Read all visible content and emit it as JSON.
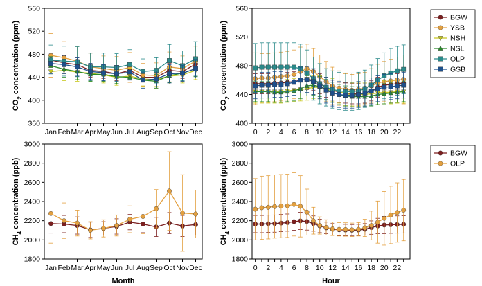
{
  "chart_data": [
    {
      "id": "co2_month",
      "type": "line",
      "ylabel_main": "CO",
      "ylabel_sub": "2",
      "ylabel_rest": " concentration (ppm)",
      "xlabel": "",
      "ylim": [
        360,
        560
      ],
      "yticks": [
        "360",
        "400",
        "440",
        "480",
        "520",
        "560"
      ],
      "categories": [
        "Jan",
        "Feb",
        "Mar",
        "Apr",
        "May",
        "Jun",
        "Jul",
        "Aug",
        "Sep",
        "Oct",
        "Nov",
        "Dec"
      ],
      "series": [
        {
          "name": "BGW",
          "color": "#7b1f1f",
          "marker": "circle",
          "values": [
            470,
            465,
            462,
            452,
            450,
            446,
            452,
            440,
            440,
            452,
            450,
            463
          ],
          "err": [
            12,
            12,
            12,
            12,
            12,
            12,
            12,
            12,
            12,
            12,
            12,
            12
          ]
        },
        {
          "name": "YSB",
          "color": "#e3a040",
          "marker": "circle",
          "values": [
            478,
            474,
            468,
            458,
            455,
            452,
            457,
            444,
            443,
            458,
            455,
            468
          ],
          "err": [
            38,
            28,
            26,
            24,
            22,
            24,
            26,
            20,
            22,
            26,
            22,
            26
          ]
        },
        {
          "name": "NSH",
          "color": "#c8c820",
          "marker": "triangle-down",
          "values": [
            450,
            452,
            449,
            447,
            444,
            440,
            442,
            437,
            436,
            442,
            444,
            452
          ],
          "err": [
            22,
            18,
            16,
            14,
            14,
            14,
            14,
            12,
            12,
            14,
            14,
            16
          ]
        },
        {
          "name": "NSL",
          "color": "#2b8a2b",
          "marker": "triangle",
          "values": [
            460,
            454,
            450,
            445,
            445,
            441,
            440,
            435,
            433,
            443,
            447,
            455
          ],
          "err": [
            16,
            14,
            14,
            12,
            12,
            12,
            12,
            12,
            12,
            12,
            12,
            14
          ]
        },
        {
          "name": "OLP",
          "color": "#2a8a8a",
          "marker": "square",
          "values": [
            470,
            468,
            467,
            458,
            458,
            457,
            462,
            450,
            452,
            469,
            460,
            472
          ],
          "err": [
            26,
            26,
            26,
            24,
            24,
            24,
            26,
            22,
            22,
            28,
            26,
            30
          ]
        },
        {
          "name": "GSB",
          "color": "#1e4f8a",
          "marker": "square",
          "values": [
            464,
            462,
            458,
            450,
            448,
            446,
            449,
            435,
            437,
            446,
            447,
            455
          ],
          "err": [
            18,
            16,
            16,
            14,
            14,
            14,
            14,
            14,
            14,
            16,
            14,
            16
          ]
        }
      ]
    },
    {
      "id": "co2_hour",
      "type": "line",
      "ylabel_main": "CO",
      "ylabel_sub": "2",
      "ylabel_rest": " concentration (ppm)",
      "xlabel": "",
      "ylim": [
        400,
        560
      ],
      "yticks": [
        "400",
        "440",
        "480",
        "520",
        "560"
      ],
      "categories": [
        "0",
        "1",
        "2",
        "3",
        "4",
        "5",
        "6",
        "7",
        "8",
        "9",
        "10",
        "11",
        "12",
        "13",
        "14",
        "15",
        "16",
        "17",
        "18",
        "19",
        "20",
        "21",
        "22",
        "23"
      ],
      "tick_labels": [
        "0",
        "",
        "2",
        "",
        "4",
        "",
        "6",
        "",
        "8",
        "",
        "10",
        "",
        "12",
        "",
        "14",
        "",
        "16",
        "",
        "18",
        "",
        "20",
        "",
        "22",
        ""
      ],
      "legend": [
        "BGW",
        "YSB",
        "NSH",
        "NSL",
        "OLP",
        "GSB"
      ],
      "series": [
        {
          "name": "BGW",
          "color": "#7b1f1f",
          "marker": "circle",
          "values": [
            455,
            455,
            455,
            456,
            456,
            457,
            458,
            460,
            461,
            460,
            455,
            450,
            446,
            443,
            442,
            441,
            441,
            442,
            445,
            450,
            453,
            454,
            455,
            456
          ],
          "err": [
            14,
            14,
            14,
            14,
            14,
            14,
            14,
            14,
            14,
            14,
            14,
            14,
            14,
            14,
            14,
            14,
            14,
            14,
            14,
            14,
            14,
            14,
            14,
            14
          ]
        },
        {
          "name": "YSB",
          "color": "#e3a040",
          "marker": "circle",
          "values": [
            462,
            463,
            463,
            464,
            465,
            466,
            468,
            472,
            476,
            472,
            465,
            458,
            452,
            449,
            447,
            446,
            447,
            449,
            452,
            456,
            458,
            459,
            460,
            461
          ],
          "err": [
            36,
            34,
            34,
            34,
            34,
            34,
            34,
            34,
            34,
            32,
            30,
            28,
            26,
            24,
            22,
            22,
            22,
            22,
            24,
            26,
            28,
            30,
            32,
            34
          ]
        },
        {
          "name": "NSH",
          "color": "#c8c820",
          "marker": "triangle-down",
          "values": [
            444,
            444,
            444,
            444,
            444,
            445,
            446,
            447,
            448,
            450,
            450,
            448,
            446,
            444,
            441,
            440,
            440,
            440,
            441,
            442,
            443,
            443,
            444,
            444
          ],
          "err": [
            16,
            16,
            16,
            16,
            16,
            16,
            16,
            16,
            16,
            16,
            16,
            16,
            16,
            16,
            16,
            16,
            16,
            16,
            16,
            16,
            16,
            16,
            16,
            16
          ]
        },
        {
          "name": "NSL",
          "color": "#2b8a2b",
          "marker": "triangle",
          "values": [
            444,
            444,
            444,
            443,
            443,
            444,
            445,
            448,
            452,
            453,
            451,
            447,
            443,
            440,
            438,
            437,
            437,
            437,
            438,
            440,
            441,
            442,
            443,
            444
          ],
          "err": [
            14,
            14,
            14,
            14,
            14,
            14,
            14,
            14,
            14,
            14,
            14,
            14,
            14,
            14,
            14,
            14,
            14,
            14,
            14,
            14,
            14,
            14,
            14,
            14
          ]
        },
        {
          "name": "OLP",
          "color": "#2a8a8a",
          "marker": "square",
          "values": [
            477,
            478,
            478,
            478,
            478,
            478,
            478,
            476,
            470,
            462,
            455,
            450,
            447,
            445,
            444,
            444,
            445,
            448,
            453,
            460,
            466,
            470,
            473,
            475
          ],
          "err": [
            34,
            34,
            34,
            34,
            34,
            34,
            34,
            34,
            32,
            30,
            28,
            26,
            26,
            26,
            26,
            26,
            26,
            26,
            28,
            30,
            32,
            34,
            34,
            34
          ]
        },
        {
          "name": "GSB",
          "color": "#1e4f8a",
          "marker": "square",
          "values": [
            452,
            453,
            453,
            454,
            454,
            455,
            457,
            460,
            461,
            458,
            452,
            446,
            442,
            440,
            439,
            439,
            440,
            442,
            445,
            448,
            450,
            451,
            452,
            453
          ],
          "err": [
            18,
            18,
            18,
            18,
            18,
            18,
            18,
            18,
            18,
            18,
            18,
            18,
            18,
            18,
            18,
            18,
            18,
            18,
            18,
            18,
            18,
            18,
            18,
            18
          ]
        }
      ]
    },
    {
      "id": "ch4_month",
      "type": "line",
      "ylabel_main": "CH",
      "ylabel_sub": "4",
      "ylabel_rest": " concentration (ppb)",
      "xlabel": "Month",
      "ylim": [
        1800,
        3000
      ],
      "yticks": [
        "1800",
        "2000",
        "2200",
        "2400",
        "2600",
        "2800",
        "3000"
      ],
      "categories": [
        "Jan",
        "Feb",
        "Mar",
        "Apr",
        "May",
        "Jun",
        "Jul",
        "Aug",
        "Sep",
        "Oct",
        "Nov",
        "Dec"
      ],
      "series": [
        {
          "name": "BGW",
          "color": "#7b1f1f",
          "marker": "circle",
          "values": [
            2170,
            2165,
            2150,
            2105,
            2120,
            2140,
            2185,
            2165,
            2135,
            2175,
            2145,
            2160
          ],
          "err": [
            100,
            90,
            90,
            80,
            70,
            80,
            80,
            90,
            100,
            110,
            110,
            110
          ]
        },
        {
          "name": "OLP",
          "color": "#e3a040",
          "marker": "circle",
          "values": [
            2275,
            2200,
            2175,
            2100,
            2120,
            2150,
            2215,
            2245,
            2325,
            2510,
            2280,
            2270
          ],
          "err": [
            310,
            185,
            135,
            90,
            90,
            110,
            140,
            180,
            200,
            410,
            400,
            250
          ]
        }
      ]
    },
    {
      "id": "ch4_hour",
      "type": "line",
      "ylabel_main": "CH",
      "ylabel_sub": "4",
      "ylabel_rest": " concentration (ppb)",
      "xlabel": "Hour",
      "ylim": [
        1800,
        3000
      ],
      "yticks": [
        "1800",
        "2000",
        "2200",
        "2400",
        "2600",
        "2800",
        "3000"
      ],
      "categories": [
        "0",
        "1",
        "2",
        "3",
        "4",
        "5",
        "6",
        "7",
        "8",
        "9",
        "10",
        "11",
        "12",
        "13",
        "14",
        "15",
        "16",
        "17",
        "18",
        "19",
        "20",
        "21",
        "22",
        "23"
      ],
      "tick_labels": [
        "0",
        "",
        "2",
        "",
        "4",
        "",
        "6",
        "",
        "8",
        "",
        "10",
        "",
        "12",
        "",
        "14",
        "",
        "16",
        "",
        "18",
        "",
        "20",
        "",
        "22",
        ""
      ],
      "legend": [
        "BGW",
        "OLP"
      ],
      "series": [
        {
          "name": "BGW",
          "color": "#7b1f1f",
          "marker": "circle",
          "values": [
            2165,
            2165,
            2168,
            2170,
            2175,
            2180,
            2190,
            2198,
            2192,
            2170,
            2145,
            2125,
            2110,
            2105,
            2102,
            2100,
            2102,
            2110,
            2128,
            2145,
            2155,
            2158,
            2160,
            2162
          ],
          "err": [
            90,
            90,
            90,
            90,
            90,
            90,
            90,
            90,
            90,
            80,
            70,
            60,
            60,
            60,
            60,
            60,
            60,
            60,
            70,
            80,
            90,
            90,
            90,
            90
          ]
        },
        {
          "name": "OLP",
          "color": "#e3a040",
          "marker": "circle",
          "values": [
            2320,
            2335,
            2340,
            2348,
            2352,
            2355,
            2370,
            2350,
            2290,
            2200,
            2150,
            2130,
            2115,
            2110,
            2108,
            2105,
            2110,
            2125,
            2150,
            2185,
            2225,
            2260,
            2285,
            2310
          ],
          "err": [
            320,
            330,
            330,
            330,
            330,
            330,
            330,
            320,
            240,
            140,
            90,
            80,
            70,
            70,
            70,
            70,
            70,
            90,
            150,
            220,
            280,
            300,
            310,
            320
          ]
        }
      ]
    }
  ]
}
